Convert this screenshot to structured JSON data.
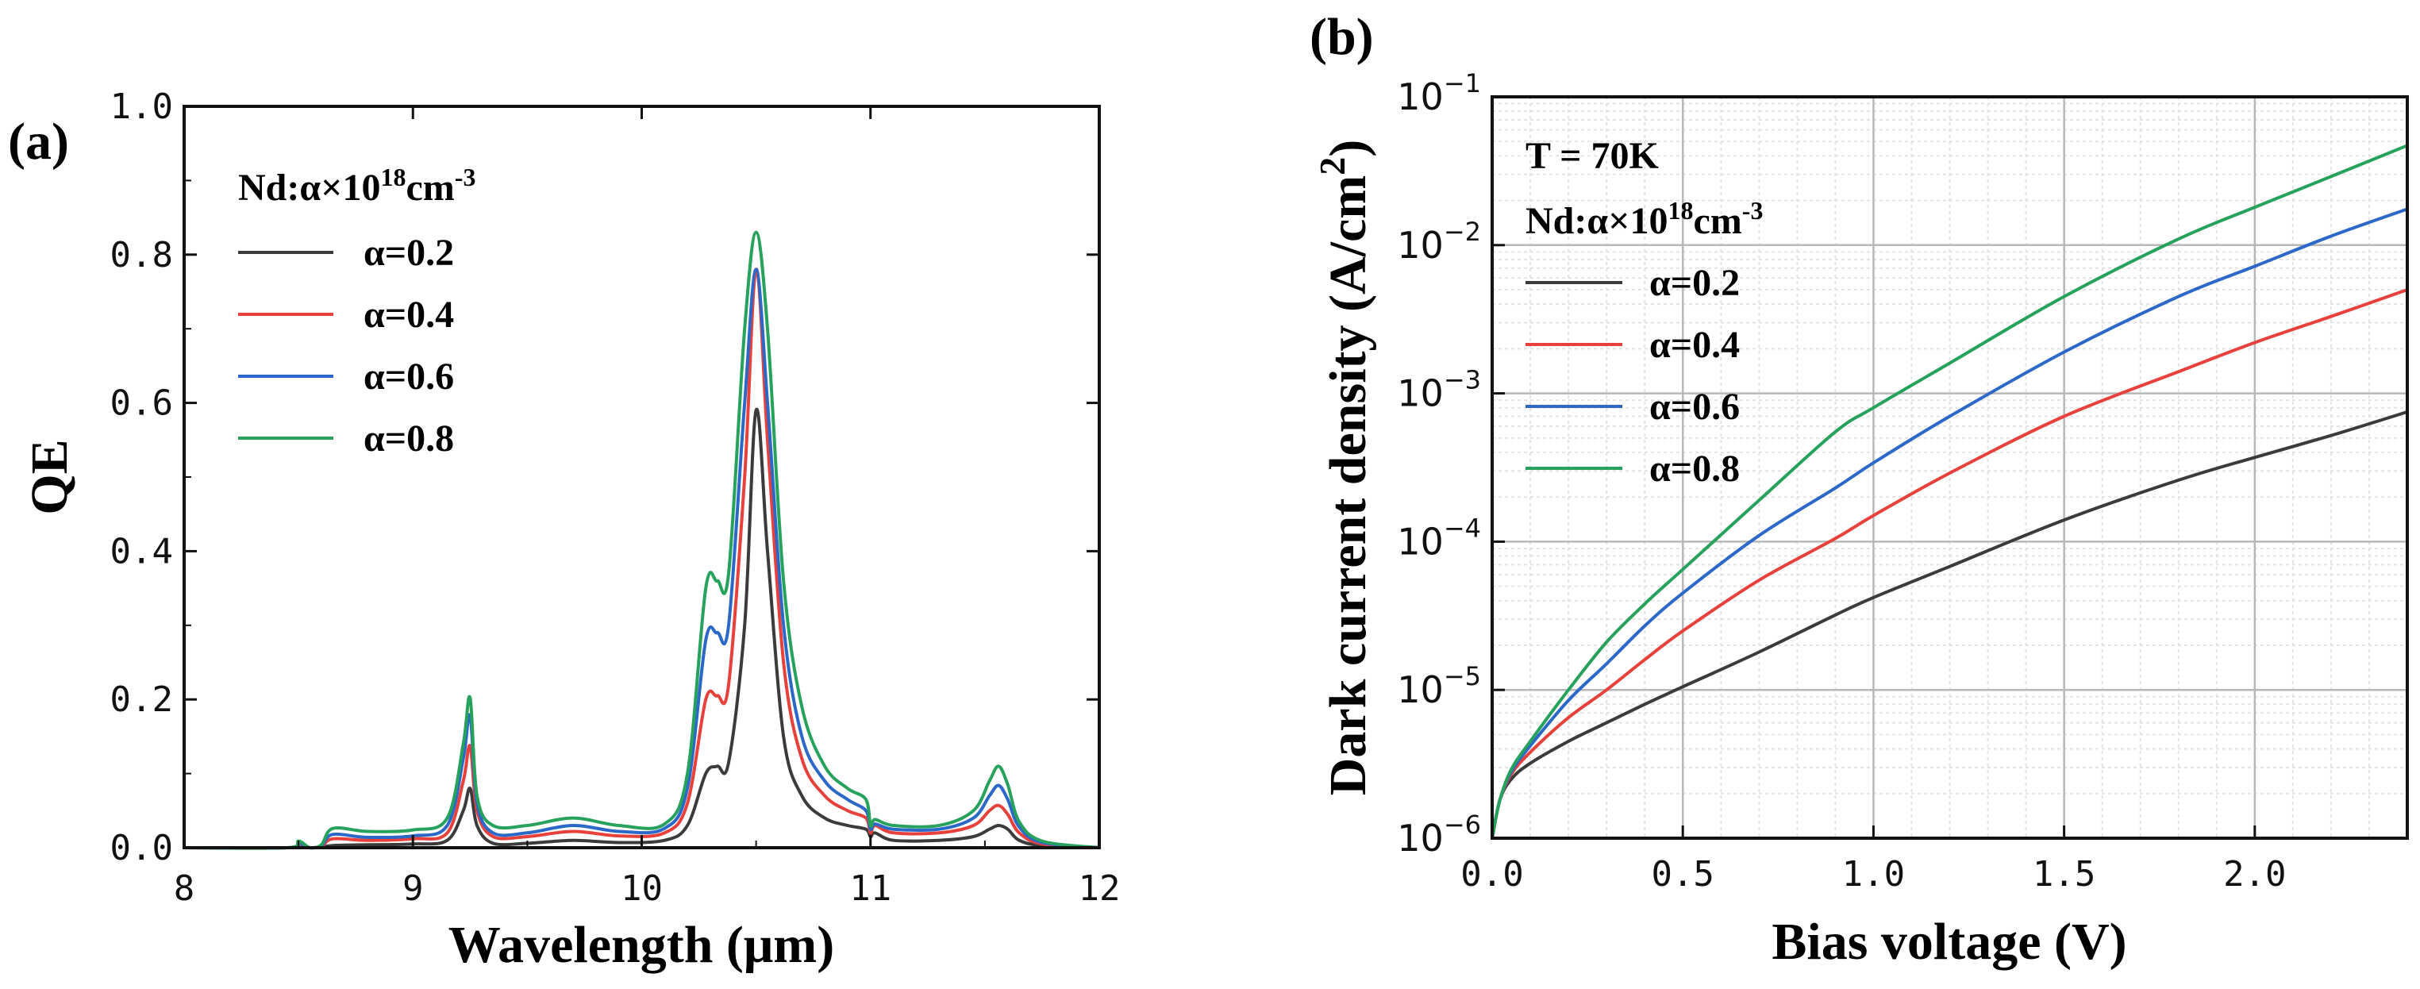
{
  "chart_data": [
    {
      "type": "line",
      "panel_label": "(a)",
      "xlabel": "Wavelength (μm)",
      "ylabel": "QE",
      "xlim": [
        8,
        12
      ],
      "ylim": [
        0,
        1.0
      ],
      "x_ticks": [
        "8",
        "9",
        "10",
        "11",
        "12"
      ],
      "y_ticks": [
        "0.0",
        "0.2",
        "0.4",
        "0.6",
        "0.8",
        "1.0"
      ],
      "legend_title": "Nd:α×10",
      "legend_title_sup1": "18",
      "legend_title_mid": "cm",
      "legend_title_sup2": "-3",
      "series": [
        {
          "name": "α=0.2",
          "color": "#3b3b3b",
          "x": [
            8.0,
            8.45,
            8.5,
            8.55,
            8.6,
            8.65,
            8.8,
            9.0,
            9.15,
            9.22,
            9.25,
            9.28,
            9.35,
            9.5,
            9.7,
            9.9,
            10.1,
            10.2,
            10.28,
            10.33,
            10.38,
            10.45,
            10.5,
            10.55,
            10.62,
            10.7,
            10.8,
            10.9,
            10.98,
            11.0,
            11.02,
            11.1,
            11.3,
            11.45,
            11.52,
            11.56,
            11.6,
            11.65,
            11.75,
            12.0
          ],
          "y": [
            0.0,
            0.0,
            0.002,
            0.0,
            0.001,
            0.003,
            0.004,
            0.005,
            0.01,
            0.05,
            0.08,
            0.03,
            0.006,
            0.006,
            0.01,
            0.007,
            0.01,
            0.03,
            0.1,
            0.11,
            0.115,
            0.3,
            0.59,
            0.4,
            0.15,
            0.07,
            0.04,
            0.03,
            0.025,
            0.015,
            0.02,
            0.01,
            0.01,
            0.015,
            0.025,
            0.03,
            0.025,
            0.01,
            0.003,
            0.0
          ]
        },
        {
          "name": "α=0.4",
          "color": "#e8413c",
          "x": [
            8.0,
            8.45,
            8.5,
            8.55,
            8.6,
            8.65,
            8.8,
            9.0,
            9.15,
            9.22,
            9.25,
            9.28,
            9.35,
            9.5,
            9.7,
            9.9,
            10.1,
            10.2,
            10.28,
            10.33,
            10.38,
            10.45,
            10.5,
            10.55,
            10.62,
            10.7,
            10.8,
            10.9,
            10.98,
            11.0,
            11.02,
            11.1,
            11.3,
            11.45,
            11.52,
            11.56,
            11.6,
            11.65,
            11.75,
            12.0
          ],
          "y": [
            0.0,
            0.0,
            0.004,
            0.0,
            0.002,
            0.012,
            0.01,
            0.012,
            0.02,
            0.09,
            0.137,
            0.05,
            0.015,
            0.015,
            0.022,
            0.016,
            0.02,
            0.06,
            0.2,
            0.205,
            0.22,
            0.5,
            0.78,
            0.55,
            0.25,
            0.12,
            0.07,
            0.05,
            0.04,
            0.02,
            0.03,
            0.02,
            0.02,
            0.03,
            0.05,
            0.057,
            0.045,
            0.02,
            0.005,
            0.0
          ]
        },
        {
          "name": "α=0.6",
          "color": "#2b68c8",
          "x": [
            8.0,
            8.45,
            8.5,
            8.55,
            8.6,
            8.65,
            8.8,
            9.0,
            9.15,
            9.22,
            9.25,
            9.28,
            9.35,
            9.5,
            9.7,
            9.9,
            10.1,
            10.2,
            10.28,
            10.33,
            10.38,
            10.45,
            10.5,
            10.55,
            10.62,
            10.7,
            10.8,
            10.9,
            10.98,
            11.0,
            11.02,
            11.1,
            11.3,
            11.45,
            11.52,
            11.56,
            11.6,
            11.65,
            11.75,
            12.0
          ],
          "y": [
            0.0,
            0.0,
            0.006,
            0.0,
            0.003,
            0.018,
            0.014,
            0.016,
            0.03,
            0.12,
            0.178,
            0.06,
            0.02,
            0.02,
            0.03,
            0.022,
            0.026,
            0.08,
            0.28,
            0.29,
            0.3,
            0.6,
            0.78,
            0.6,
            0.3,
            0.15,
            0.09,
            0.065,
            0.05,
            0.025,
            0.032,
            0.025,
            0.025,
            0.04,
            0.07,
            0.084,
            0.065,
            0.028,
            0.007,
            0.0
          ]
        },
        {
          "name": "α=0.8",
          "color": "#27a25c",
          "x": [
            8.0,
            8.45,
            8.5,
            8.55,
            8.6,
            8.65,
            8.8,
            9.0,
            9.15,
            9.22,
            9.25,
            9.28,
            9.35,
            9.5,
            9.7,
            9.9,
            10.1,
            10.2,
            10.28,
            10.33,
            10.38,
            10.45,
            10.5,
            10.55,
            10.62,
            10.7,
            10.8,
            10.9,
            10.98,
            11.0,
            11.02,
            11.1,
            11.3,
            11.45,
            11.52,
            11.56,
            11.6,
            11.65,
            11.75,
            12.0
          ],
          "y": [
            0.0,
            0.0,
            0.009,
            0.0,
            0.004,
            0.026,
            0.022,
            0.024,
            0.04,
            0.14,
            0.202,
            0.07,
            0.03,
            0.03,
            0.04,
            0.03,
            0.032,
            0.1,
            0.35,
            0.36,
            0.37,
            0.7,
            0.83,
            0.7,
            0.36,
            0.19,
            0.11,
            0.08,
            0.065,
            0.03,
            0.038,
            0.03,
            0.03,
            0.05,
            0.09,
            0.11,
            0.085,
            0.035,
            0.009,
            0.0
          ]
        }
      ]
    },
    {
      "type": "line",
      "panel_label": "(b)",
      "xlabel": "Bias voltage (V)",
      "ylabel": "Dark current density (A/cm",
      "ylabel_sup": "2",
      "ylabel_end": ")",
      "xlim": [
        0,
        2.4
      ],
      "ylim": [
        1e-06,
        0.1
      ],
      "yscale": "log",
      "grid": true,
      "x_ticks": [
        "0.0",
        "0.5",
        "1.0",
        "1.5",
        "2.0"
      ],
      "y_ticks": [
        "10",
        "10",
        "10",
        "10",
        "10",
        "10"
      ],
      "y_tick_exponents": [
        "−6",
        "−5",
        "−4",
        "−3",
        "−2",
        "−1"
      ],
      "annotation": "T = 70K",
      "legend_title": "Nd:α×10",
      "legend_title_sup1": "18",
      "legend_title_mid": "cm",
      "legend_title_sup2": "-3",
      "series": [
        {
          "name": "α=0.2",
          "color": "#3b3b3b",
          "x": [
            0.0,
            0.02,
            0.05,
            0.1,
            0.2,
            0.3,
            0.4,
            0.5,
            0.7,
            0.9,
            1.0,
            1.2,
            1.5,
            1.8,
            2.0,
            2.2,
            2.4
          ],
          "y": [
            1e-06,
            1.8e-06,
            2.5e-06,
            3.2e-06,
            4.5e-06,
            6e-06,
            8e-06,
            1.05e-05,
            1.8e-05,
            3.2e-05,
            4.2e-05,
            6.8e-05,
            0.00014,
            0.00026,
            0.00037,
            0.00052,
            0.00075
          ]
        },
        {
          "name": "α=0.4",
          "color": "#e8413c",
          "x": [
            0.0,
            0.02,
            0.05,
            0.1,
            0.2,
            0.3,
            0.4,
            0.5,
            0.7,
            0.9,
            1.0,
            1.2,
            1.5,
            1.8,
            2.0,
            2.2,
            2.4
          ],
          "y": [
            1e-06,
            1.8e-06,
            2.7e-06,
            3.8e-06,
            6.5e-06,
            1e-05,
            1.6e-05,
            2.5e-05,
            5.5e-05,
            0.000105,
            0.00015,
            0.00029,
            0.0007,
            0.0014,
            0.0022,
            0.0033,
            0.005
          ]
        },
        {
          "name": "α=0.6",
          "color": "#2b68c8",
          "x": [
            0.0,
            0.02,
            0.05,
            0.1,
            0.2,
            0.3,
            0.4,
            0.5,
            0.7,
            0.9,
            1.0,
            1.2,
            1.5,
            1.8,
            2.0,
            2.2,
            2.4
          ],
          "y": [
            1e-06,
            1.8e-06,
            2.8e-06,
            4.2e-06,
            8.5e-06,
            1.5e-05,
            2.7e-05,
            4.5e-05,
            0.00011,
            0.00023,
            0.00034,
            0.0007,
            0.0019,
            0.0045,
            0.0072,
            0.0115,
            0.0175
          ]
        },
        {
          "name": "α=0.8",
          "color": "#27a25c",
          "x": [
            0.0,
            0.02,
            0.05,
            0.1,
            0.2,
            0.3,
            0.4,
            0.5,
            0.7,
            0.9,
            1.0,
            1.2,
            1.5,
            1.8,
            2.0,
            2.2,
            2.4
          ],
          "y": [
            1e-06,
            1.8e-06,
            2.9e-06,
            4.5e-06,
            1e-05,
            2.1e-05,
            3.8e-05,
            6.5e-05,
            0.00019,
            0.00055,
            0.0008,
            0.0016,
            0.0045,
            0.011,
            0.018,
            0.029,
            0.047
          ]
        }
      ]
    }
  ]
}
